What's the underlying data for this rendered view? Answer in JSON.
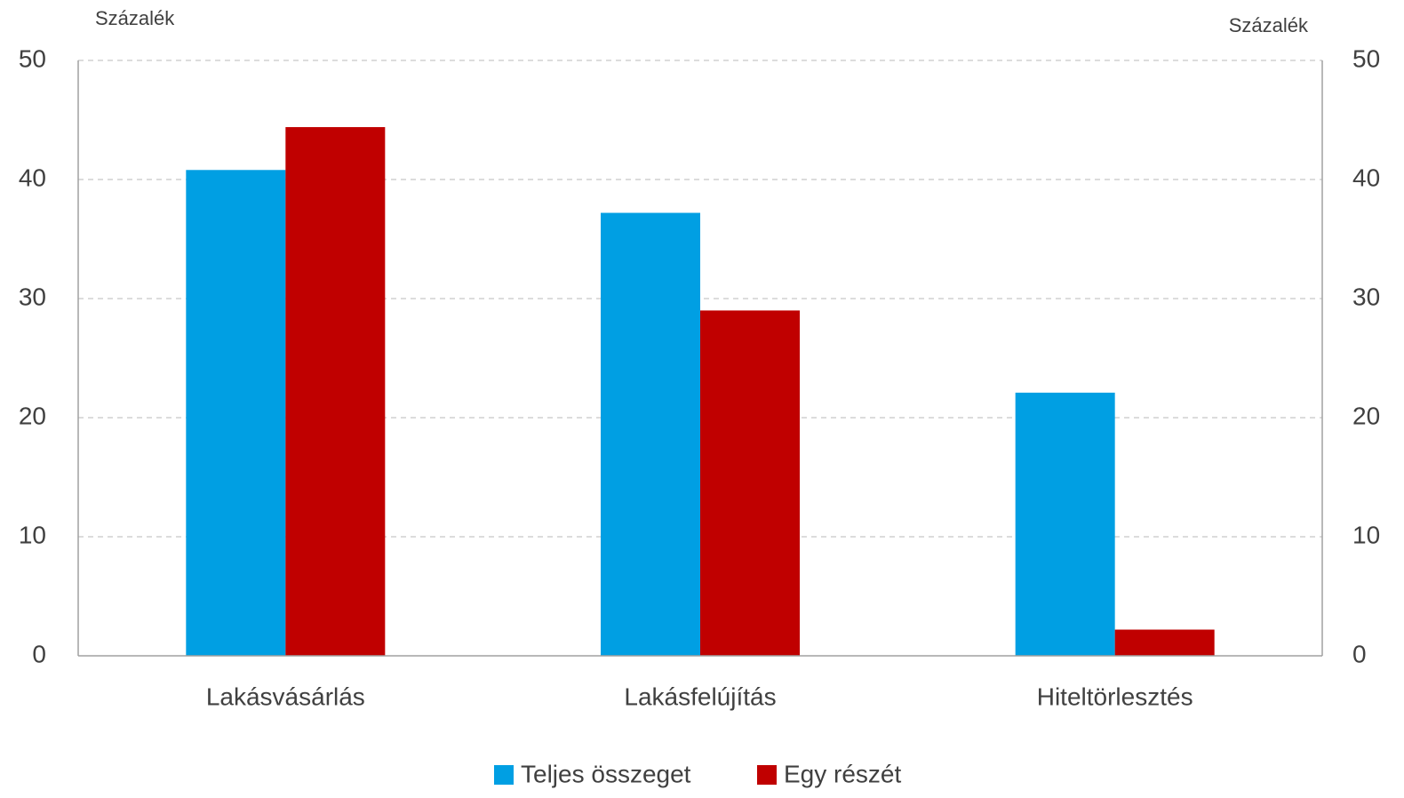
{
  "chart_data": {
    "type": "bar",
    "y_axis_label": "Százalék",
    "y2_axis_label": "Százalék",
    "categories": [
      "Lakásvásárlás",
      "Lakásfelújítás",
      "Hiteltörlesztés"
    ],
    "series": [
      {
        "name": "Teljes összeget",
        "color": "#009fe3",
        "values": [
          40.8,
          37.2,
          22.1
        ]
      },
      {
        "name": "Egy részét",
        "color": "#c00000",
        "values": [
          44.4,
          29.0,
          2.2
        ]
      }
    ],
    "ylim": [
      0,
      50
    ],
    "yticks": [
      0,
      10,
      20,
      30,
      40,
      50
    ],
    "y2lim": [
      0,
      50
    ],
    "y2ticks": [
      0,
      10,
      20,
      30,
      40,
      50
    ],
    "grid": true,
    "legend": "bottom"
  }
}
